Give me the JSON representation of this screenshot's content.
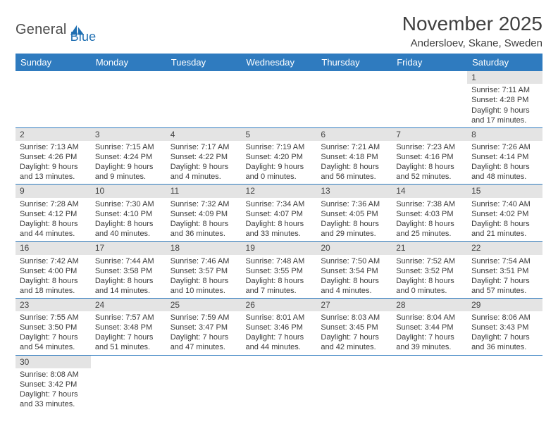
{
  "colors": {
    "header_bg": "#2f7bbf",
    "header_text": "#ffffff",
    "daynum_bg": "#e4e4e4",
    "row_divider": "#2f7bbf",
    "body_text": "#363636",
    "logo_blue": "#1f6fb2",
    "logo_dark": "#4a4a4a",
    "page_bg": "#ffffff"
  },
  "typography": {
    "family": "Arial",
    "title_size_pt": 21,
    "subtitle_size_pt": 11,
    "dayheader_size_pt": 10,
    "daynum_size_pt": 9,
    "cell_size_pt": 8
  },
  "type": "calendar",
  "logo": {
    "word1": "General",
    "word2": "Blue"
  },
  "title": "November 2025",
  "subtitle": "Andersloev, Skane, Sweden",
  "day_headers": [
    "Sunday",
    "Monday",
    "Tuesday",
    "Wednesday",
    "Thursday",
    "Friday",
    "Saturday"
  ],
  "layout": {
    "columns": 7,
    "rows": 6,
    "first_weekday_index": 6,
    "days_in_month": 30
  },
  "days": {
    "1": {
      "sunrise": "7:11 AM",
      "sunset": "4:28 PM",
      "daylight": "9 hours and 17 minutes."
    },
    "2": {
      "sunrise": "7:13 AM",
      "sunset": "4:26 PM",
      "daylight": "9 hours and 13 minutes."
    },
    "3": {
      "sunrise": "7:15 AM",
      "sunset": "4:24 PM",
      "daylight": "9 hours and 9 minutes."
    },
    "4": {
      "sunrise": "7:17 AM",
      "sunset": "4:22 PM",
      "daylight": "9 hours and 4 minutes."
    },
    "5": {
      "sunrise": "7:19 AM",
      "sunset": "4:20 PM",
      "daylight": "9 hours and 0 minutes."
    },
    "6": {
      "sunrise": "7:21 AM",
      "sunset": "4:18 PM",
      "daylight": "8 hours and 56 minutes."
    },
    "7": {
      "sunrise": "7:23 AM",
      "sunset": "4:16 PM",
      "daylight": "8 hours and 52 minutes."
    },
    "8": {
      "sunrise": "7:26 AM",
      "sunset": "4:14 PM",
      "daylight": "8 hours and 48 minutes."
    },
    "9": {
      "sunrise": "7:28 AM",
      "sunset": "4:12 PM",
      "daylight": "8 hours and 44 minutes."
    },
    "10": {
      "sunrise": "7:30 AM",
      "sunset": "4:10 PM",
      "daylight": "8 hours and 40 minutes."
    },
    "11": {
      "sunrise": "7:32 AM",
      "sunset": "4:09 PM",
      "daylight": "8 hours and 36 minutes."
    },
    "12": {
      "sunrise": "7:34 AM",
      "sunset": "4:07 PM",
      "daylight": "8 hours and 33 minutes."
    },
    "13": {
      "sunrise": "7:36 AM",
      "sunset": "4:05 PM",
      "daylight": "8 hours and 29 minutes."
    },
    "14": {
      "sunrise": "7:38 AM",
      "sunset": "4:03 PM",
      "daylight": "8 hours and 25 minutes."
    },
    "15": {
      "sunrise": "7:40 AM",
      "sunset": "4:02 PM",
      "daylight": "8 hours and 21 minutes."
    },
    "16": {
      "sunrise": "7:42 AM",
      "sunset": "4:00 PM",
      "daylight": "8 hours and 18 minutes."
    },
    "17": {
      "sunrise": "7:44 AM",
      "sunset": "3:58 PM",
      "daylight": "8 hours and 14 minutes."
    },
    "18": {
      "sunrise": "7:46 AM",
      "sunset": "3:57 PM",
      "daylight": "8 hours and 10 minutes."
    },
    "19": {
      "sunrise": "7:48 AM",
      "sunset": "3:55 PM",
      "daylight": "8 hours and 7 minutes."
    },
    "20": {
      "sunrise": "7:50 AM",
      "sunset": "3:54 PM",
      "daylight": "8 hours and 4 minutes."
    },
    "21": {
      "sunrise": "7:52 AM",
      "sunset": "3:52 PM",
      "daylight": "8 hours and 0 minutes."
    },
    "22": {
      "sunrise": "7:54 AM",
      "sunset": "3:51 PM",
      "daylight": "7 hours and 57 minutes."
    },
    "23": {
      "sunrise": "7:55 AM",
      "sunset": "3:50 PM",
      "daylight": "7 hours and 54 minutes."
    },
    "24": {
      "sunrise": "7:57 AM",
      "sunset": "3:48 PM",
      "daylight": "7 hours and 51 minutes."
    },
    "25": {
      "sunrise": "7:59 AM",
      "sunset": "3:47 PM",
      "daylight": "7 hours and 47 minutes."
    },
    "26": {
      "sunrise": "8:01 AM",
      "sunset": "3:46 PM",
      "daylight": "7 hours and 44 minutes."
    },
    "27": {
      "sunrise": "8:03 AM",
      "sunset": "3:45 PM",
      "daylight": "7 hours and 42 minutes."
    },
    "28": {
      "sunrise": "8:04 AM",
      "sunset": "3:44 PM",
      "daylight": "7 hours and 39 minutes."
    },
    "29": {
      "sunrise": "8:06 AM",
      "sunset": "3:43 PM",
      "daylight": "7 hours and 36 minutes."
    },
    "30": {
      "sunrise": "8:08 AM",
      "sunset": "3:42 PM",
      "daylight": "7 hours and 33 minutes."
    }
  },
  "labels": {
    "sunrise": "Sunrise:",
    "sunset": "Sunset:",
    "daylight": "Daylight:"
  }
}
